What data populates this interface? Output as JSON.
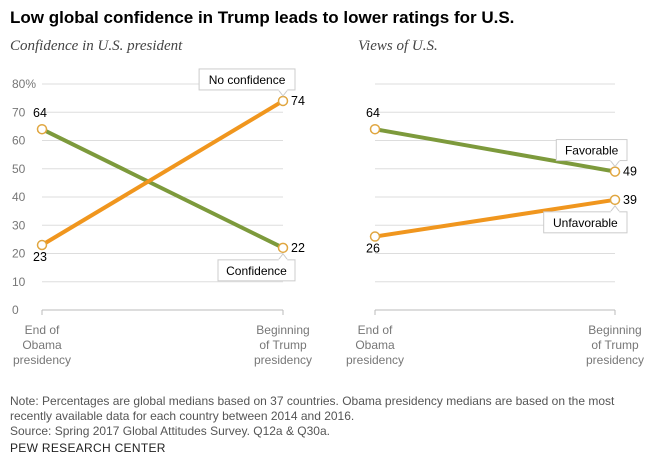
{
  "title": "Low global confidence in Trump leads to lower ratings for U.S.",
  "chart_data": [
    {
      "type": "line",
      "title": "Confidence in U.S. president",
      "categories": [
        "End of Obama presidency",
        "Beginning of Trump presidency"
      ],
      "ylim": [
        0,
        80
      ],
      "yticks": [
        "0",
        "10",
        "20",
        "30",
        "40",
        "50",
        "60",
        "70",
        "80%"
      ],
      "grid": true,
      "series": [
        {
          "name": "Confidence",
          "values": [
            64,
            22
          ],
          "color": "#7d9a3c"
        },
        {
          "name": "No confidence",
          "values": [
            23,
            74
          ],
          "color": "#f0961e"
        }
      ]
    },
    {
      "type": "line",
      "title": "Views of U.S.",
      "categories": [
        "End of Obama presidency",
        "Beginning of Trump presidency"
      ],
      "ylim": [
        0,
        80
      ],
      "grid": true,
      "series": [
        {
          "name": "Favorable",
          "values": [
            64,
            49
          ],
          "color": "#7d9a3c"
        },
        {
          "name": "Unfavorable",
          "values": [
            26,
            39
          ],
          "color": "#f0961e"
        }
      ]
    }
  ],
  "category_lines": [
    [
      "End of",
      "Obama",
      "presidency"
    ],
    [
      "Beginning",
      "of Trump",
      "presidency"
    ]
  ],
  "note": "Note: Percentages are global medians based on 37 countries. Obama presidency medians are based on the most recently available data for each country between 2014 and 2016.",
  "source": "Source: Spring 2017 Global Attitudes Survey. Q12a & Q30a.",
  "org": "PEW RESEARCH CENTER"
}
